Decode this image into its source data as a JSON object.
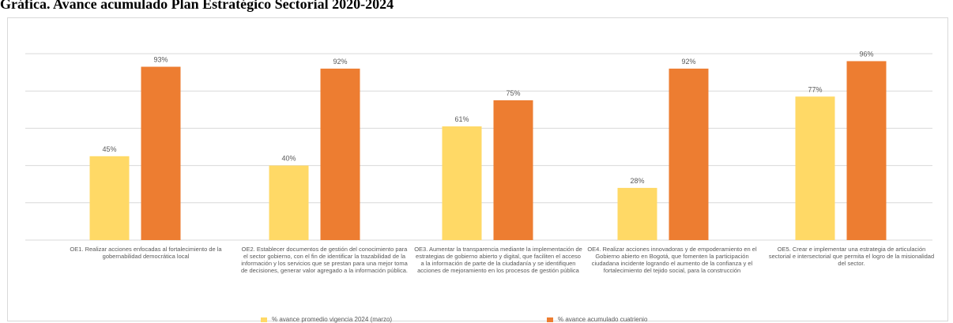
{
  "page_title": "Gráfica. Avance acumulado Plan Estratégico Sectorial 2020-2024",
  "colors": {
    "series_1": "#FFD966",
    "series_2": "#ED7D31",
    "gridline": "#d9d9d9",
    "label_text": "#595959"
  },
  "chart_data": {
    "type": "bar",
    "title": "",
    "xlabel": "",
    "ylabel": "",
    "ylim": [
      0,
      100
    ],
    "grid": true,
    "legend_position": "bottom",
    "categories": [
      "OE1. Realizar acciones enfocadas al fortalecimiento de la gobernabilidad democrática local",
      "OE2. Establecer documentos de gestión del conocimiento para el sector gobierno, con el fin de identificar la trazabilidad de la información y los servicios que se prestan para una mejor toma de decisiones, generar valor agregado a la información pública.",
      "OE3. Aumentar la transparencia mediante la implementación de estrategias de gobierno abierto y digital, que faciliten el acceso a la información de parte de la ciudadanía y se identifiquen acciones de mejoramiento en los procesos de gestión pública",
      "OE4. Realizar acciones innovadoras y de empoderamiento en el Gobierno abierto en Bogotá, que fomenten la participación ciudadana incidente logrando el aumento de la confianza y el fortalecimiento del tejido social, para la construcción",
      "OE5. Crear e implementar una estrategia de articulación sectorial e intersectorial que permita el logro de la misionalidad del sector."
    ],
    "series": [
      {
        "name": "% avance promedio vigencia 2024 (marzo)",
        "values": [
          45,
          40,
          61,
          28,
          77
        ],
        "labels": [
          "45%",
          "40%",
          "61%",
          "28%",
          "77%"
        ]
      },
      {
        "name": "% avance acumulado cuatrienio",
        "values": [
          93,
          92,
          75,
          92,
          96
        ],
        "labels": [
          "93%",
          "92%",
          "75%",
          "92%",
          "96%"
        ]
      }
    ]
  }
}
